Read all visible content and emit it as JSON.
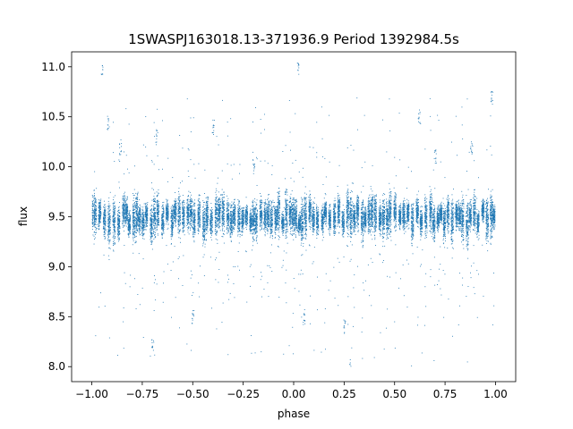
{
  "chart_data": {
    "type": "scatter",
    "title": "1SWASPJ163018.13-371936.9 Period 1392984.5s",
    "xlabel": "phase",
    "ylabel": "flux",
    "xlim": [
      -1.1,
      1.1
    ],
    "ylim": [
      7.85,
      11.15
    ],
    "xticks": [
      -1.0,
      -0.75,
      -0.5,
      -0.25,
      0.0,
      0.25,
      0.5,
      0.75,
      1.0
    ],
    "xtick_labels": [
      "−1.00",
      "−0.75",
      "−0.50",
      "−0.25",
      "0.00",
      "0.25",
      "0.50",
      "0.75",
      "1.00"
    ],
    "yticks": [
      8.0,
      8.5,
      9.0,
      9.5,
      10.0,
      10.5,
      11.0
    ],
    "ytick_labels": [
      "8.0",
      "8.5",
      "9.0",
      "9.5",
      "10.0",
      "10.5",
      "11.0"
    ],
    "grid": false,
    "marker_color": "#1f77b4",
    "series": [
      {
        "phase_range": [
          -1.0,
          1.0
        ],
        "typical_flux": 9.5,
        "typical_scatter": 0.2,
        "flux_min": 8.0,
        "flux_max": 11.05,
        "approx_points": 15000,
        "points": [
          [
            -0.97,
            9.45
          ],
          [
            -0.92,
            10.45
          ],
          [
            -0.86,
            10.2
          ],
          [
            -0.7,
            8.2
          ],
          [
            -0.68,
            10.3
          ],
          [
            -0.6,
            9.55
          ],
          [
            -0.5,
            8.5
          ],
          [
            -0.4,
            10.4
          ],
          [
            -0.36,
            9.65
          ],
          [
            -0.2,
            10.0
          ],
          [
            -0.1,
            9.6
          ],
          [
            0.02,
            9.4
          ],
          [
            0.05,
            8.5
          ],
          [
            0.25,
            8.4
          ],
          [
            0.28,
            8.0
          ],
          [
            0.45,
            9.55
          ],
          [
            0.55,
            9.4
          ],
          [
            0.62,
            10.5
          ],
          [
            0.7,
            10.1
          ],
          [
            0.8,
            9.55
          ],
          [
            0.88,
            10.2
          ],
          [
            0.95,
            9.6
          ],
          [
            -0.95,
            11.0
          ],
          [
            0.02,
            11.0
          ],
          [
            0.98,
            10.7
          ]
        ]
      }
    ]
  }
}
